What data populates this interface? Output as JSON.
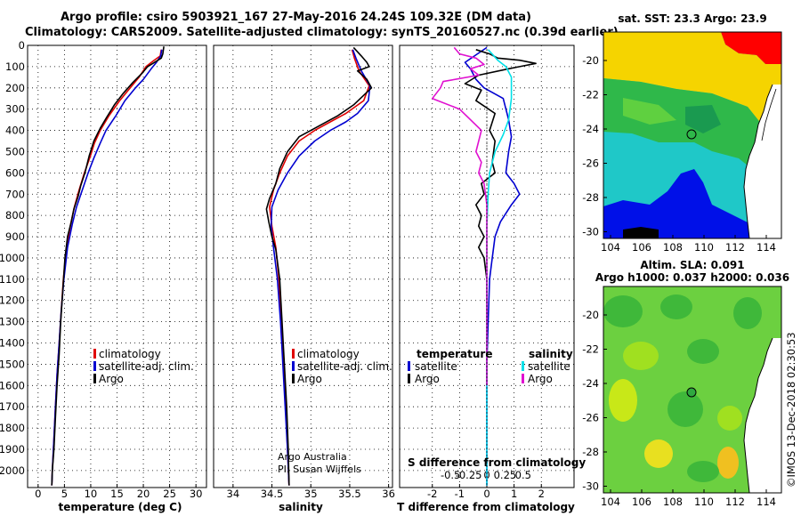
{
  "header": {
    "title_line1": "Argo profile: csiro 5903921_167 27-May-2016 24.24S 109.32E (DM data)",
    "title_line2": "Climatology: CARS2009. Satellite-adjusted climatology: synTS_20160527.nc (0.39d earlier)"
  },
  "map_top": {
    "title": "sat. SST: 23.3 Argo: 23.9",
    "xticks": [
      "104",
      "106",
      "108",
      "110",
      "112",
      "114"
    ],
    "yticks": [
      "-20",
      "-22",
      "-24",
      "-26",
      "-28",
      "-30"
    ]
  },
  "map_bottom": {
    "title_line1": "Altim. SLA: 0.091",
    "title_line2": "Argo h1000: 0.037 h2000: 0.036",
    "xticks": [
      "104",
      "106",
      "108",
      "110",
      "112",
      "114"
    ],
    "yticks": [
      "-20",
      "-22",
      "-24",
      "-26",
      "-28",
      "-30"
    ]
  },
  "side_label": "©IMOS 13-Dec-2018 02:30:53",
  "credit": {
    "line1": "Argo Australia",
    "line2": "PI: Susan Wijffels"
  },
  "colors": {
    "climatology": "#e00000",
    "satellite": "#0000d0",
    "argo": "#000000",
    "argo_salinity": "#e010d0",
    "satellite_salinity": "#00e0e8"
  },
  "chart_data": [
    {
      "type": "line",
      "xlabel": "temperature (deg C)",
      "ylabel": "",
      "xlim": [
        -2,
        32
      ],
      "ylim": [
        2080,
        0
      ],
      "xticks": [
        0,
        5,
        10,
        15,
        20,
        25,
        30
      ],
      "yticks": [
        0,
        100,
        200,
        300,
        400,
        500,
        600,
        700,
        800,
        900,
        1000,
        1100,
        1200,
        1300,
        1400,
        1500,
        1600,
        1700,
        1800,
        1900,
        2000
      ],
      "legend": [
        "climatology",
        "satellite-adj. clim.",
        "Argo"
      ],
      "series": [
        {
          "name": "climatology",
          "color": "#e00000",
          "points": [
            [
              23.4,
              20
            ],
            [
              23.2,
              50
            ],
            [
              21.8,
              75
            ],
            [
              20.5,
              100
            ],
            [
              19.2,
              150
            ],
            [
              17.5,
              200
            ],
            [
              15.5,
              260
            ],
            [
              13.5,
              330
            ],
            [
              11.8,
              400
            ],
            [
              10.7,
              460
            ],
            [
              9.8,
              530
            ],
            [
              8.8,
              600
            ],
            [
              7.8,
              680
            ],
            [
              6.9,
              760
            ],
            [
              6.2,
              840
            ],
            [
              5.4,
              950
            ],
            [
              4.8,
              1100
            ],
            [
              4.4,
              1250
            ],
            [
              4.0,
              1400
            ],
            [
              3.6,
              1550
            ],
            [
              3.3,
              1700
            ],
            [
              3.0,
              1850
            ],
            [
              2.7,
              2000
            ],
            [
              2.6,
              2070
            ]
          ]
        },
        {
          "name": "satellite-adj. clim.",
          "color": "#0000d0",
          "points": [
            [
              23.5,
              20
            ],
            [
              23.3,
              50
            ],
            [
              22.5,
              80
            ],
            [
              21.5,
              110
            ],
            [
              20.0,
              160
            ],
            [
              18.5,
              200
            ],
            [
              16.5,
              260
            ],
            [
              14.8,
              330
            ],
            [
              12.9,
              400
            ],
            [
              11.8,
              460
            ],
            [
              10.6,
              530
            ],
            [
              9.5,
              600
            ],
            [
              8.4,
              680
            ],
            [
              7.3,
              760
            ],
            [
              6.5,
              840
            ],
            [
              5.6,
              950
            ],
            [
              4.9,
              1100
            ],
            [
              4.4,
              1250
            ],
            [
              4.0,
              1400
            ],
            [
              3.6,
              1550
            ],
            [
              3.3,
              1700
            ],
            [
              3.0,
              1850
            ],
            [
              2.7,
              2000
            ],
            [
              2.6,
              2070
            ]
          ]
        },
        {
          "name": "Argo",
          "color": "#000000",
          "points": [
            [
              23.9,
              5
            ],
            [
              23.7,
              40
            ],
            [
              23.4,
              60
            ],
            [
              21.8,
              85
            ],
            [
              20.8,
              100
            ],
            [
              19.8,
              130
            ],
            [
              18.0,
              175
            ],
            [
              16.2,
              225
            ],
            [
              14.5,
              280
            ],
            [
              13.0,
              340
            ],
            [
              11.8,
              390
            ],
            [
              10.6,
              450
            ],
            [
              9.7,
              520
            ],
            [
              8.9,
              600
            ],
            [
              8.1,
              660
            ],
            [
              7.6,
              710
            ],
            [
              6.8,
              770
            ],
            [
              6.3,
              830
            ],
            [
              5.6,
              900
            ],
            [
              5.1,
              1000
            ],
            [
              4.7,
              1150
            ],
            [
              4.3,
              1300
            ],
            [
              4.0,
              1450
            ],
            [
              3.6,
              1600
            ],
            [
              3.3,
              1750
            ],
            [
              3.0,
              1900
            ],
            [
              2.7,
              2000
            ],
            [
              2.6,
              2070
            ]
          ]
        }
      ]
    },
    {
      "type": "line",
      "xlabel": "salinity",
      "ylabel": "",
      "xlim": [
        33.75,
        36.05
      ],
      "ylim": [
        2080,
        0
      ],
      "xticks": [
        34,
        34.5,
        35,
        35.5,
        36
      ],
      "legend": [
        "climatology",
        "satellite-adj. clim.",
        "Argo"
      ],
      "series": [
        {
          "name": "climatology",
          "color": "#e00000",
          "points": [
            [
              35.53,
              20
            ],
            [
              35.56,
              60
            ],
            [
              35.62,
              120
            ],
            [
              35.75,
              190
            ],
            [
              35.68,
              260
            ],
            [
              35.45,
              320
            ],
            [
              35.25,
              360
            ],
            [
              35.05,
              400
            ],
            [
              34.85,
              450
            ],
            [
              34.7,
              520
            ],
            [
              34.6,
              600
            ],
            [
              34.52,
              680
            ],
            [
              34.47,
              760
            ],
            [
              34.5,
              850
            ],
            [
              34.55,
              950
            ],
            [
              34.59,
              1100
            ],
            [
              34.62,
              1300
            ],
            [
              34.65,
              1500
            ],
            [
              34.68,
              1700
            ],
            [
              34.7,
              1900
            ],
            [
              34.72,
              2070
            ]
          ]
        },
        {
          "name": "satellite-adj. clim.",
          "color": "#0000d0",
          "points": [
            [
              35.54,
              20
            ],
            [
              35.58,
              60
            ],
            [
              35.65,
              120
            ],
            [
              35.76,
              190
            ],
            [
              35.74,
              260
            ],
            [
              35.6,
              320
            ],
            [
              35.45,
              360
            ],
            [
              35.25,
              400
            ],
            [
              35.05,
              450
            ],
            [
              34.85,
              520
            ],
            [
              34.7,
              600
            ],
            [
              34.58,
              680
            ],
            [
              34.5,
              760
            ],
            [
              34.49,
              850
            ],
            [
              34.52,
              950
            ],
            [
              34.57,
              1100
            ],
            [
              34.61,
              1300
            ],
            [
              34.64,
              1500
            ],
            [
              34.67,
              1700
            ],
            [
              34.7,
              1900
            ],
            [
              34.72,
              2070
            ]
          ]
        },
        {
          "name": "Argo",
          "color": "#000000",
          "points": [
            [
              35.55,
              10
            ],
            [
              35.65,
              50
            ],
            [
              35.72,
              80
            ],
            [
              35.75,
              100
            ],
            [
              35.6,
              120
            ],
            [
              35.72,
              160
            ],
            [
              35.78,
              200
            ],
            [
              35.55,
              280
            ],
            [
              35.35,
              330
            ],
            [
              35.1,
              380
            ],
            [
              34.85,
              430
            ],
            [
              34.7,
              500
            ],
            [
              34.6,
              580
            ],
            [
              34.55,
              650
            ],
            [
              34.47,
              720
            ],
            [
              34.43,
              770
            ],
            [
              34.46,
              830
            ],
            [
              34.5,
              900
            ],
            [
              34.55,
              960
            ],
            [
              34.6,
              1100
            ],
            [
              34.63,
              1300
            ],
            [
              34.66,
              1500
            ],
            [
              34.69,
              1700
            ],
            [
              34.71,
              1900
            ],
            [
              34.72,
              2070
            ]
          ]
        }
      ]
    },
    {
      "type": "line",
      "xlabel": "T difference from climatology",
      "ylabel": "",
      "xlim": [
        -3.2,
        3.2
      ],
      "ylim": [
        2080,
        0
      ],
      "xticks": [
        -2,
        -1,
        0,
        1,
        2
      ],
      "second_xlabel": "S difference from climatology",
      "second_xticks": [
        -0.5,
        -0.25,
        0,
        0.25,
        0.5
      ],
      "legend_temperature_header": "temperature",
      "legend_salinity_header": "salinity",
      "legend_satellite": "satellite",
      "legend_argo": "Argo",
      "series": [
        {
          "name": "temperature satellite",
          "color": "#0000d0",
          "points": [
            [
              0.0,
              10
            ],
            [
              -0.8,
              80
            ],
            [
              -0.6,
              110
            ],
            [
              -0.4,
              160
            ],
            [
              -0.1,
              200
            ],
            [
              0.6,
              250
            ],
            [
              0.8,
              350
            ],
            [
              0.9,
              430
            ],
            [
              0.8,
              500
            ],
            [
              0.7,
              600
            ],
            [
              1.0,
              650
            ],
            [
              1.2,
              700
            ],
            [
              0.9,
              750
            ],
            [
              0.5,
              830
            ],
            [
              0.3,
              900
            ],
            [
              0.2,
              1000
            ],
            [
              0.1,
              1100
            ],
            [
              0.05,
              1300
            ],
            [
              0,
              1500
            ],
            [
              0,
              1700
            ],
            [
              0,
              2070
            ]
          ]
        },
        {
          "name": "temperature Argo",
          "color": "#000000",
          "points": [
            [
              -0.4,
              20
            ],
            [
              0.1,
              40
            ],
            [
              0.4,
              60
            ],
            [
              1.2,
              70
            ],
            [
              1.8,
              85
            ],
            [
              1.2,
              100
            ],
            [
              0.8,
              110
            ],
            [
              -0.3,
              140
            ],
            [
              -0.8,
              180
            ],
            [
              -0.2,
              210
            ],
            [
              -0.4,
              260
            ],
            [
              0.3,
              320
            ],
            [
              0.1,
              400
            ],
            [
              0.3,
              450
            ],
            [
              0.2,
              550
            ],
            [
              0.3,
              600
            ],
            [
              -0.2,
              650
            ],
            [
              -0.1,
              700
            ],
            [
              -0.4,
              750
            ],
            [
              -0.2,
              800
            ],
            [
              -0.3,
              850
            ],
            [
              -0.1,
              900
            ],
            [
              -0.3,
              950
            ],
            [
              -0.1,
              1000
            ],
            [
              0,
              1100
            ],
            [
              0,
              1300
            ],
            [
              0,
              1500
            ],
            [
              0,
              1600
            ]
          ]
        },
        {
          "name": "salinity satellite",
          "color": "#00e0e8",
          "points": [
            [
              0.05,
              20
            ],
            [
              0.4,
              70
            ],
            [
              0.7,
              100
            ],
            [
              0.9,
              150
            ],
            [
              0.9,
              250
            ],
            [
              0.8,
              350
            ],
            [
              0.6,
              420
            ],
            [
              0.3,
              500
            ],
            [
              0.1,
              600
            ],
            [
              0.05,
              700
            ],
            [
              0,
              850
            ],
            [
              0,
              1000
            ],
            [
              0,
              1200
            ],
            [
              0,
              1500
            ],
            [
              0,
              1800
            ],
            [
              0,
              2070
            ]
          ]
        },
        {
          "name": "salinity Argo",
          "color": "#e010d0",
          "points": [
            [
              -1.2,
              10
            ],
            [
              -1.0,
              40
            ],
            [
              -0.4,
              60
            ],
            [
              -0.1,
              90
            ],
            [
              -0.6,
              110
            ],
            [
              -0.3,
              140
            ],
            [
              -1.6,
              170
            ],
            [
              -1.7,
              200
            ],
            [
              -2.0,
              250
            ],
            [
              -1.0,
              300
            ],
            [
              -0.6,
              350
            ],
            [
              -0.2,
              400
            ],
            [
              -0.4,
              500
            ],
            [
              -0.2,
              550
            ],
            [
              -0.3,
              600
            ],
            [
              -0.1,
              650
            ],
            [
              0,
              750
            ],
            [
              0,
              900
            ],
            [
              0,
              1100
            ],
            [
              0,
              1300
            ],
            [
              0,
              1500
            ],
            [
              0,
              1600
            ]
          ]
        }
      ]
    }
  ]
}
